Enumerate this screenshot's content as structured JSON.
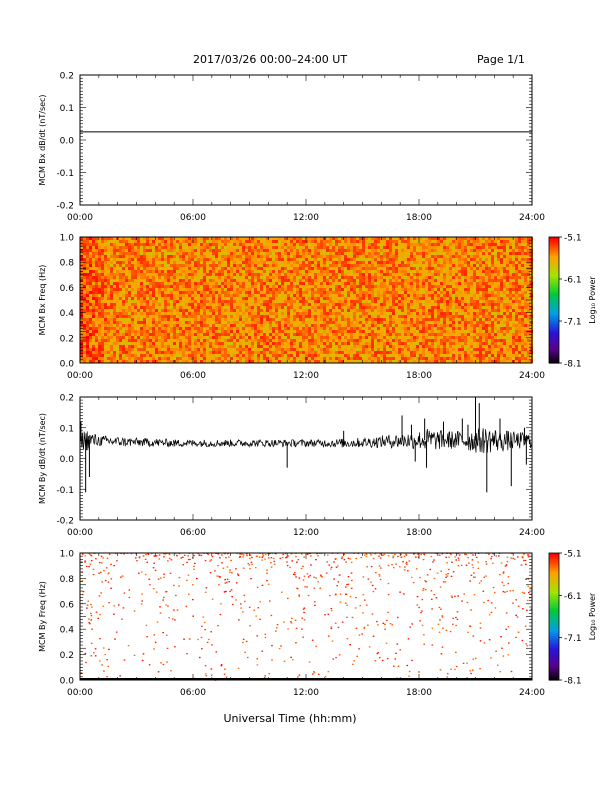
{
  "header": {
    "title": "2017/03/26  00:00–24:00 UT",
    "page": "Page 1/1"
  },
  "xlabel": "Universal Time (hh:mm)",
  "colorbar": {
    "label": "Log₁₀ Power",
    "ticks": [
      "-5.1",
      "-6.1",
      "-7.1",
      "-8.1"
    ],
    "tick_values": [
      -5.1,
      -6.1,
      -7.1,
      -8.1
    ],
    "range": [
      -8.1,
      -5.1
    ]
  },
  "chart_data": [
    {
      "type": "line",
      "ylabel": "MCM Bx dB/dt (nT/sec)",
      "xlim": [
        0,
        24
      ],
      "ylim": [
        -0.2,
        0.2
      ],
      "xticks": [
        "00:00",
        "06:00",
        "12:00",
        "18:00",
        "24:00"
      ],
      "yticks": [
        "0.2",
        "0.1",
        "0.0",
        "-0.1",
        "-0.2"
      ],
      "ytick_values": [
        0.2,
        0.1,
        0.0,
        -0.1,
        -0.2
      ],
      "x": [
        0,
        24
      ],
      "y": [
        0.025,
        0.025
      ]
    },
    {
      "type": "heatmap",
      "ylabel": "MCM Bx Freq (Hz)",
      "xlim": [
        0,
        24
      ],
      "ylim": [
        0.0,
        1.0
      ],
      "xticks": [
        "00:00",
        "06:00",
        "12:00",
        "18:00",
        "24:00"
      ],
      "yticks": [
        "1.0",
        "0.8",
        "0.6",
        "0.4",
        "0.2",
        "0.0"
      ],
      "ytick_values": [
        1.0,
        0.8,
        0.6,
        0.4,
        0.2,
        0.0
      ],
      "value_range": [
        -8.1,
        -5.1
      ],
      "typical_log_power": [
        -5.7,
        -5.3
      ],
      "coverage": "dense"
    },
    {
      "type": "line",
      "ylabel": "MCM By dB/dt (nT/sec)",
      "xlim": [
        0,
        24
      ],
      "ylim": [
        -0.2,
        0.2
      ],
      "xticks": [
        "00:00",
        "06:00",
        "12:00",
        "18:00",
        "24:00"
      ],
      "yticks": [
        "0.2",
        "0.1",
        "0.0",
        "-0.1",
        "-0.2"
      ],
      "ytick_values": [
        0.2,
        0.1,
        0.0,
        -0.1,
        -0.2
      ],
      "envelope": {
        "hours": [
          0,
          0.3,
          0.5,
          1,
          2,
          3,
          4,
          5,
          6,
          7,
          8,
          9,
          10,
          11,
          12,
          13,
          14,
          15,
          16,
          17,
          18,
          18.5,
          19,
          20,
          20.5,
          21,
          21.5,
          22,
          22.5,
          23,
          24
        ],
        "center": [
          0.06,
          0.06,
          0.06,
          0.058,
          0.055,
          0.053,
          0.052,
          0.05,
          0.05,
          0.05,
          0.05,
          0.05,
          0.05,
          0.05,
          0.05,
          0.05,
          0.05,
          0.052,
          0.055,
          0.058,
          0.06,
          0.06,
          0.06,
          0.06,
          0.06,
          0.058,
          0.06,
          0.06,
          0.058,
          0.058,
          0.058
        ],
        "spread": [
          0.02,
          0.04,
          0.03,
          0.018,
          0.016,
          0.014,
          0.014,
          0.012,
          0.012,
          0.012,
          0.012,
          0.012,
          0.012,
          0.012,
          0.012,
          0.013,
          0.015,
          0.016,
          0.02,
          0.025,
          0.03,
          0.04,
          0.032,
          0.03,
          0.035,
          0.04,
          0.045,
          0.04,
          0.035,
          0.03,
          0.025
        ]
      },
      "spikes": [
        {
          "x": 0.05,
          "y": 0.12
        },
        {
          "x": 0.3,
          "y": -0.11
        },
        {
          "x": 0.5,
          "y": -0.06
        },
        {
          "x": 11.0,
          "y": -0.03
        },
        {
          "x": 14.0,
          "y": 0.09
        },
        {
          "x": 17.1,
          "y": 0.14
        },
        {
          "x": 17.6,
          "y": 0.11
        },
        {
          "x": 17.8,
          "y": -0.01
        },
        {
          "x": 18.3,
          "y": 0.13
        },
        {
          "x": 18.4,
          "y": -0.03
        },
        {
          "x": 19.3,
          "y": 0.12
        },
        {
          "x": 20.3,
          "y": 0.13
        },
        {
          "x": 20.6,
          "y": 0.11
        },
        {
          "x": 21.0,
          "y": 0.21
        },
        {
          "x": 21.2,
          "y": 0.18
        },
        {
          "x": 21.6,
          "y": -0.11
        },
        {
          "x": 22.3,
          "y": 0.13
        },
        {
          "x": 22.9,
          "y": -0.09
        },
        {
          "x": 23.6,
          "y": 0.1
        },
        {
          "x": 23.7,
          "y": -0.02
        }
      ]
    },
    {
      "type": "heatmap",
      "ylabel": "MCM By Freq (Hz)",
      "xlim": [
        0,
        24
      ],
      "ylim": [
        0.0,
        1.0
      ],
      "xticks": [
        "00:00",
        "06:00",
        "12:00",
        "18:00",
        "24:00"
      ],
      "yticks": [
        "1.0",
        "0.8",
        "0.6",
        "0.4",
        "0.2",
        "0.0"
      ],
      "ytick_values": [
        1.0,
        0.8,
        0.6,
        0.4,
        0.2,
        0.0
      ],
      "value_range": [
        -8.1,
        -5.1
      ],
      "typical_log_power": [
        -5.4,
        -5.1
      ],
      "coverage": "sparse",
      "density_note": "points concentrated near 0.8–1.0 Hz, thinning toward 0 Hz"
    }
  ]
}
